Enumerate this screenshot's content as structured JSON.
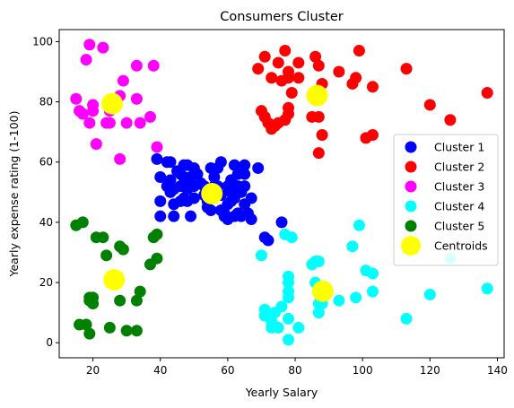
{
  "chart_data": {
    "type": "scatter",
    "title": "Consumers Cluster",
    "xlabel": "Yearly Salary",
    "ylabel": "Yearly expense rating (1-100)",
    "xlim": [
      10,
      142
    ],
    "ylim": [
      -5,
      104
    ],
    "xticks": [
      20,
      40,
      60,
      80,
      100,
      120,
      140
    ],
    "yticks": [
      0,
      20,
      40,
      60,
      80,
      100
    ],
    "grid": false,
    "legend_position": "center-right",
    "series": [
      {
        "name": "Cluster 1",
        "color": "#0000ff",
        "points": [
          [
            39,
            61
          ],
          [
            40,
            55
          ],
          [
            40,
            47
          ],
          [
            40,
            42
          ],
          [
            42,
            52
          ],
          [
            42,
            60
          ],
          [
            43,
            60
          ],
          [
            43,
            50
          ],
          [
            43,
            54
          ],
          [
            44,
            46
          ],
          [
            44,
            42
          ],
          [
            44,
            51
          ],
          [
            45,
            57
          ],
          [
            46,
            56
          ],
          [
            46,
            52
          ],
          [
            46,
            47
          ],
          [
            47,
            59
          ],
          [
            47,
            55
          ],
          [
            47,
            48
          ],
          [
            48,
            59
          ],
          [
            48,
            51
          ],
          [
            48,
            47
          ],
          [
            48,
            53
          ],
          [
            49,
            42
          ],
          [
            49,
            55
          ],
          [
            50,
            48
          ],
          [
            50,
            56
          ],
          [
            50,
            58
          ],
          [
            50,
            52
          ],
          [
            51,
            56
          ],
          [
            52,
            53
          ],
          [
            53,
            49
          ],
          [
            53,
            52
          ],
          [
            54,
            47
          ],
          [
            54,
            45
          ],
          [
            54,
            51
          ],
          [
            55,
            44
          ],
          [
            55,
            58
          ],
          [
            56,
            55
          ],
          [
            56,
            52
          ],
          [
            57,
            58
          ],
          [
            57,
            52
          ],
          [
            58,
            60
          ],
          [
            58,
            49
          ],
          [
            58,
            44
          ],
          [
            59,
            42
          ],
          [
            59,
            43
          ],
          [
            60,
            41
          ],
          [
            60,
            46
          ],
          [
            60,
            52
          ],
          [
            61,
            54
          ],
          [
            61,
            50
          ],
          [
            61,
            47
          ],
          [
            62,
            42
          ],
          [
            62,
            48
          ],
          [
            62,
            59
          ],
          [
            63,
            56
          ],
          [
            63,
            43
          ],
          [
            63,
            52
          ],
          [
            64,
            42
          ],
          [
            64,
            50
          ],
          [
            65,
            59
          ],
          [
            65,
            56
          ],
          [
            65,
            52
          ],
          [
            65,
            46
          ],
          [
            66,
            43
          ],
          [
            67,
            48
          ],
          [
            67,
            41
          ],
          [
            69,
            58
          ],
          [
            71,
            35
          ],
          [
            72,
            34
          ],
          [
            76,
            40
          ]
        ]
      },
      {
        "name": "Cluster 2",
        "color": "#ff0000",
        "points": [
          [
            69,
            91
          ],
          [
            70,
            77
          ],
          [
            71,
            95
          ],
          [
            71,
            75
          ],
          [
            72,
            73
          ],
          [
            73,
            71
          ],
          [
            73,
            88
          ],
          [
            74,
            72
          ],
          [
            75,
            93
          ],
          [
            75,
            73
          ],
          [
            76,
            87
          ],
          [
            77,
            97
          ],
          [
            77,
            74
          ],
          [
            78,
            88
          ],
          [
            78,
            90
          ],
          [
            78,
            78
          ],
          [
            78,
            76
          ],
          [
            79,
            83
          ],
          [
            81,
            93
          ],
          [
            81,
            88
          ],
          [
            85,
            75
          ],
          [
            86,
            95
          ],
          [
            87,
            75
          ],
          [
            87,
            63
          ],
          [
            87,
            92
          ],
          [
            88,
            86
          ],
          [
            88,
            69
          ],
          [
            93,
            90
          ],
          [
            97,
            86
          ],
          [
            98,
            88
          ],
          [
            99,
            97
          ],
          [
            101,
            68
          ],
          [
            103,
            69
          ],
          [
            103,
            85
          ],
          [
            113,
            91
          ],
          [
            120,
            79
          ],
          [
            126,
            74
          ],
          [
            137,
            83
          ]
        ]
      },
      {
        "name": "Cluster 3",
        "color": "#ff00ff",
        "points": [
          [
            15,
            81
          ],
          [
            16,
            77
          ],
          [
            17,
            76
          ],
          [
            18,
            94
          ],
          [
            19,
            73
          ],
          [
            19,
            99
          ],
          [
            20,
            79
          ],
          [
            20,
            77
          ],
          [
            21,
            66
          ],
          [
            23,
            98
          ],
          [
            24,
            73
          ],
          [
            25,
            73
          ],
          [
            25,
            77
          ],
          [
            28,
            82
          ],
          [
            28,
            61
          ],
          [
            29,
            87
          ],
          [
            30,
            73
          ],
          [
            33,
            81
          ],
          [
            33,
            92
          ],
          [
            34,
            73
          ],
          [
            37,
            75
          ],
          [
            38,
            92
          ],
          [
            39,
            65
          ]
        ]
      },
      {
        "name": "Cluster 4",
        "color": "#00ffff",
        "points": [
          [
            70,
            29
          ],
          [
            71,
            11
          ],
          [
            71,
            9
          ],
          [
            73,
            5
          ],
          [
            73,
            7
          ],
          [
            74,
            10
          ],
          [
            75,
            5
          ],
          [
            76,
            12
          ],
          [
            77,
            36
          ],
          [
            78,
            1
          ],
          [
            78,
            15
          ],
          [
            78,
            17
          ],
          [
            78,
            20
          ],
          [
            78,
            22
          ],
          [
            78,
            8
          ],
          [
            79,
            35
          ],
          [
            81,
            5
          ],
          [
            85,
            26
          ],
          [
            86,
            27
          ],
          [
            86,
            20
          ],
          [
            87,
            10
          ],
          [
            87,
            13
          ],
          [
            87,
            27
          ],
          [
            88,
            13
          ],
          [
            88,
            15
          ],
          [
            93,
            14
          ],
          [
            97,
            32
          ],
          [
            98,
            15
          ],
          [
            99,
            39
          ],
          [
            101,
            24
          ],
          [
            103,
            23
          ],
          [
            103,
            17
          ],
          [
            113,
            8
          ],
          [
            120,
            16
          ],
          [
            126,
            28
          ],
          [
            137,
            18
          ]
        ]
      },
      {
        "name": "Cluster 5",
        "color": "#008000",
        "points": [
          [
            15,
            39
          ],
          [
            16,
            6
          ],
          [
            17,
            40
          ],
          [
            18,
            6
          ],
          [
            19,
            3
          ],
          [
            19,
            14
          ],
          [
            19,
            15
          ],
          [
            20,
            13
          ],
          [
            20,
            15
          ],
          [
            21,
            35
          ],
          [
            23,
            35
          ],
          [
            24,
            29
          ],
          [
            25,
            5
          ],
          [
            28,
            14
          ],
          [
            28,
            32
          ],
          [
            29,
            31
          ],
          [
            30,
            4
          ],
          [
            33,
            4
          ],
          [
            33,
            14
          ],
          [
            34,
            17
          ],
          [
            37,
            26
          ],
          [
            38,
            35
          ],
          [
            39,
            36
          ],
          [
            39,
            28
          ]
        ]
      },
      {
        "name": "Centroids",
        "color": "#ffff00",
        "points": [
          [
            55.3,
            49.5
          ],
          [
            86.5,
            82.1
          ],
          [
            25.7,
            79.4
          ],
          [
            88.2,
            17.1
          ],
          [
            26.3,
            20.9
          ]
        ]
      }
    ]
  }
}
